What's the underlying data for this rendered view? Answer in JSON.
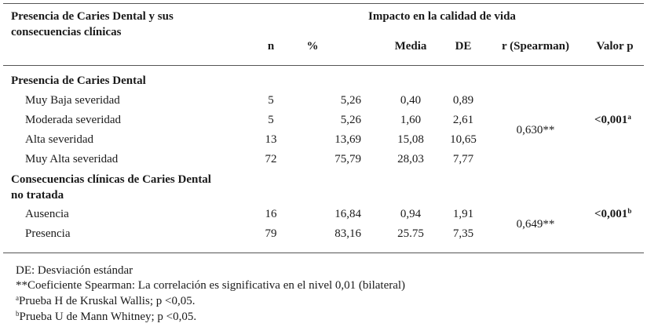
{
  "header": {
    "row_group_title": "Presencia de Caries Dental y sus consecuencias clínicas",
    "row_group_title_line1": "Presencia de Caries Dental y sus",
    "row_group_title_line2": "consecuencias clínicas",
    "span_title": "Impacto en la calidad de vida",
    "col_n": "n",
    "col_pct": "%",
    "col_media": "Media",
    "col_de": "DE",
    "col_r": "r (Spearman)",
    "col_p": "Valor p"
  },
  "sections": [
    {
      "title": "Presencia de Caries Dental",
      "rows": [
        {
          "label": "Muy Baja severidad",
          "n": "5",
          "pct": "5,26",
          "media": "0,40",
          "de": "0,89"
        },
        {
          "label": "Moderada severidad",
          "n": "5",
          "pct": "5,26",
          "media": "1,60",
          "de": "2,61"
        },
        {
          "label": "Alta severidad",
          "n": "13",
          "pct": "13,69",
          "media": "15,08",
          "de": "10,65"
        },
        {
          "label": "Muy Alta severidad",
          "n": "72",
          "pct": "75,79",
          "media": "28,03",
          "de": "7,77"
        }
      ],
      "r": "0,630**",
      "p": "<0,001",
      "p_sup": "a"
    },
    {
      "title_line1": "Consecuencias clínicas de Caries Dental",
      "title_line2": "no tratada",
      "rows": [
        {
          "label": "Ausencia",
          "n": "16",
          "pct": "16,84",
          "media": "0,94",
          "de": "1,91"
        },
        {
          "label": "Presencia",
          "n": "79",
          "pct": "83,16",
          "media": "25.75",
          "de": "7,35"
        }
      ],
      "r": "0,649**",
      "p": "<0,001",
      "p_sup": "b"
    }
  ],
  "footnotes": {
    "de": "DE: Desviación estándar",
    "spearman": "**Coeficiente Spearman: La correlación es significativa en el nivel 0,01 (bilateral)",
    "a_mark": "a",
    "a_text": "Prueba H de Kruskal Wallis; p <0,05.",
    "b_mark": "b",
    "b_text": "Prueba U de Mann Whitney; p <0,05."
  }
}
